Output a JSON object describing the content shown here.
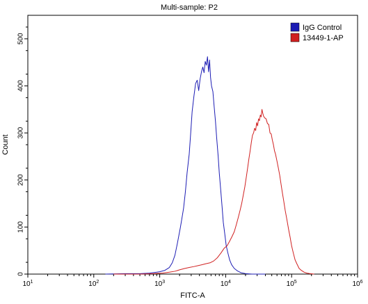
{
  "chart_data": {
    "type": "line",
    "title": "Multi-sample: P2",
    "xlabel": "FITC-A",
    "ylabel": "Count",
    "x_scale": "log",
    "xlim": [
      10,
      1000000
    ],
    "ylim": [
      0,
      550
    ],
    "x_ticks": [
      {
        "value": 10,
        "base": "10",
        "exp": "1"
      },
      {
        "value": 100,
        "base": "10",
        "exp": "2"
      },
      {
        "value": 1000,
        "base": "10",
        "exp": "3"
      },
      {
        "value": 10000,
        "base": "10",
        "exp": "4"
      },
      {
        "value": 100000,
        "base": "10",
        "exp": "5"
      },
      {
        "value": 1000000,
        "base": "10",
        "exp": "6"
      }
    ],
    "y_ticks": [
      0,
      100,
      200,
      300,
      400,
      500
    ],
    "grid": false,
    "legend_position": "top-right",
    "series": [
      {
        "name": "IgG Control",
        "color": "#1c1cb4",
        "points": [
          [
            150,
            0
          ],
          [
            300,
            1
          ],
          [
            500,
            1
          ],
          [
            700,
            2
          ],
          [
            900,
            4
          ],
          [
            1000,
            5
          ],
          [
            1200,
            8
          ],
          [
            1400,
            14
          ],
          [
            1550,
            24
          ],
          [
            1700,
            40
          ],
          [
            1850,
            65
          ],
          [
            1950,
            82
          ],
          [
            2050,
            98
          ],
          [
            2150,
            115
          ],
          [
            2300,
            140
          ],
          [
            2450,
            175
          ],
          [
            2600,
            215
          ],
          [
            2800,
            255
          ],
          [
            2950,
            300
          ],
          [
            3100,
            345
          ],
          [
            3300,
            378
          ],
          [
            3500,
            405
          ],
          [
            3700,
            412
          ],
          [
            3900,
            390
          ],
          [
            4100,
            415
          ],
          [
            4300,
            430
          ],
          [
            4500,
            440
          ],
          [
            4700,
            428
          ],
          [
            4900,
            452
          ],
          [
            5100,
            444
          ],
          [
            5300,
            462
          ],
          [
            5500,
            430
          ],
          [
            5700,
            455
          ],
          [
            5900,
            418
          ],
          [
            6100,
            400
          ],
          [
            6400,
            388
          ],
          [
            6700,
            355
          ],
          [
            7000,
            325
          ],
          [
            7300,
            290
          ],
          [
            7700,
            250
          ],
          [
            8000,
            215
          ],
          [
            8400,
            180
          ],
          [
            8800,
            145
          ],
          [
            9200,
            110
          ],
          [
            9700,
            85
          ],
          [
            10200,
            60
          ],
          [
            10800,
            45
          ],
          [
            11500,
            30
          ],
          [
            12300,
            20
          ],
          [
            13500,
            12
          ],
          [
            15000,
            7
          ],
          [
            17000,
            3
          ],
          [
            20000,
            1
          ],
          [
            25000,
            0
          ],
          [
            40000,
            0
          ]
        ]
      },
      {
        "name": "13449-1-AP",
        "color": "#d02020",
        "points": [
          [
            200,
            0
          ],
          [
            500,
            0
          ],
          [
            800,
            1
          ],
          [
            1100,
            2
          ],
          [
            1400,
            4
          ],
          [
            1700,
            6
          ],
          [
            2000,
            9
          ],
          [
            2400,
            12
          ],
          [
            2800,
            14
          ],
          [
            3300,
            16
          ],
          [
            3800,
            18
          ],
          [
            4400,
            20
          ],
          [
            5000,
            22
          ],
          [
            5800,
            24
          ],
          [
            6600,
            28
          ],
          [
            7500,
            35
          ],
          [
            8500,
            45
          ],
          [
            9500,
            55
          ],
          [
            10500,
            60
          ],
          [
            11500,
            70
          ],
          [
            12500,
            80
          ],
          [
            13500,
            90
          ],
          [
            14500,
            105
          ],
          [
            15500,
            120
          ],
          [
            16500,
            135
          ],
          [
            17500,
            150
          ],
          [
            18500,
            168
          ],
          [
            19500,
            185
          ],
          [
            20500,
            205
          ],
          [
            21500,
            225
          ],
          [
            22500,
            245
          ],
          [
            23500,
            262
          ],
          [
            24500,
            280
          ],
          [
            25500,
            295
          ],
          [
            26500,
            300
          ],
          [
            27500,
            310
          ],
          [
            28500,
            305
          ],
          [
            29500,
            322
          ],
          [
            30500,
            315
          ],
          [
            31500,
            330
          ],
          [
            32500,
            326
          ],
          [
            33500,
            338
          ],
          [
            34500,
            334
          ],
          [
            35500,
            350
          ],
          [
            36500,
            342
          ],
          [
            37500,
            336
          ],
          [
            39000,
            332
          ],
          [
            41000,
            330
          ],
          [
            43000,
            320
          ],
          [
            45000,
            318
          ],
          [
            47000,
            300
          ],
          [
            49000,
            298
          ],
          [
            51000,
            285
          ],
          [
            53000,
            275
          ],
          [
            55000,
            262
          ],
          [
            57000,
            255
          ],
          [
            60000,
            240
          ],
          [
            63000,
            225
          ],
          [
            66000,
            210
          ],
          [
            69000,
            192
          ],
          [
            72000,
            175
          ],
          [
            76000,
            155
          ],
          [
            80000,
            135
          ],
          [
            85000,
            115
          ],
          [
            90000,
            95
          ],
          [
            95000,
            78
          ],
          [
            100000,
            60
          ],
          [
            106000,
            45
          ],
          [
            113000,
            30
          ],
          [
            120000,
            22
          ],
          [
            130000,
            12
          ],
          [
            140000,
            8
          ],
          [
            155000,
            4
          ],
          [
            170000,
            2
          ],
          [
            190000,
            1
          ],
          [
            220000,
            0
          ]
        ]
      }
    ]
  }
}
